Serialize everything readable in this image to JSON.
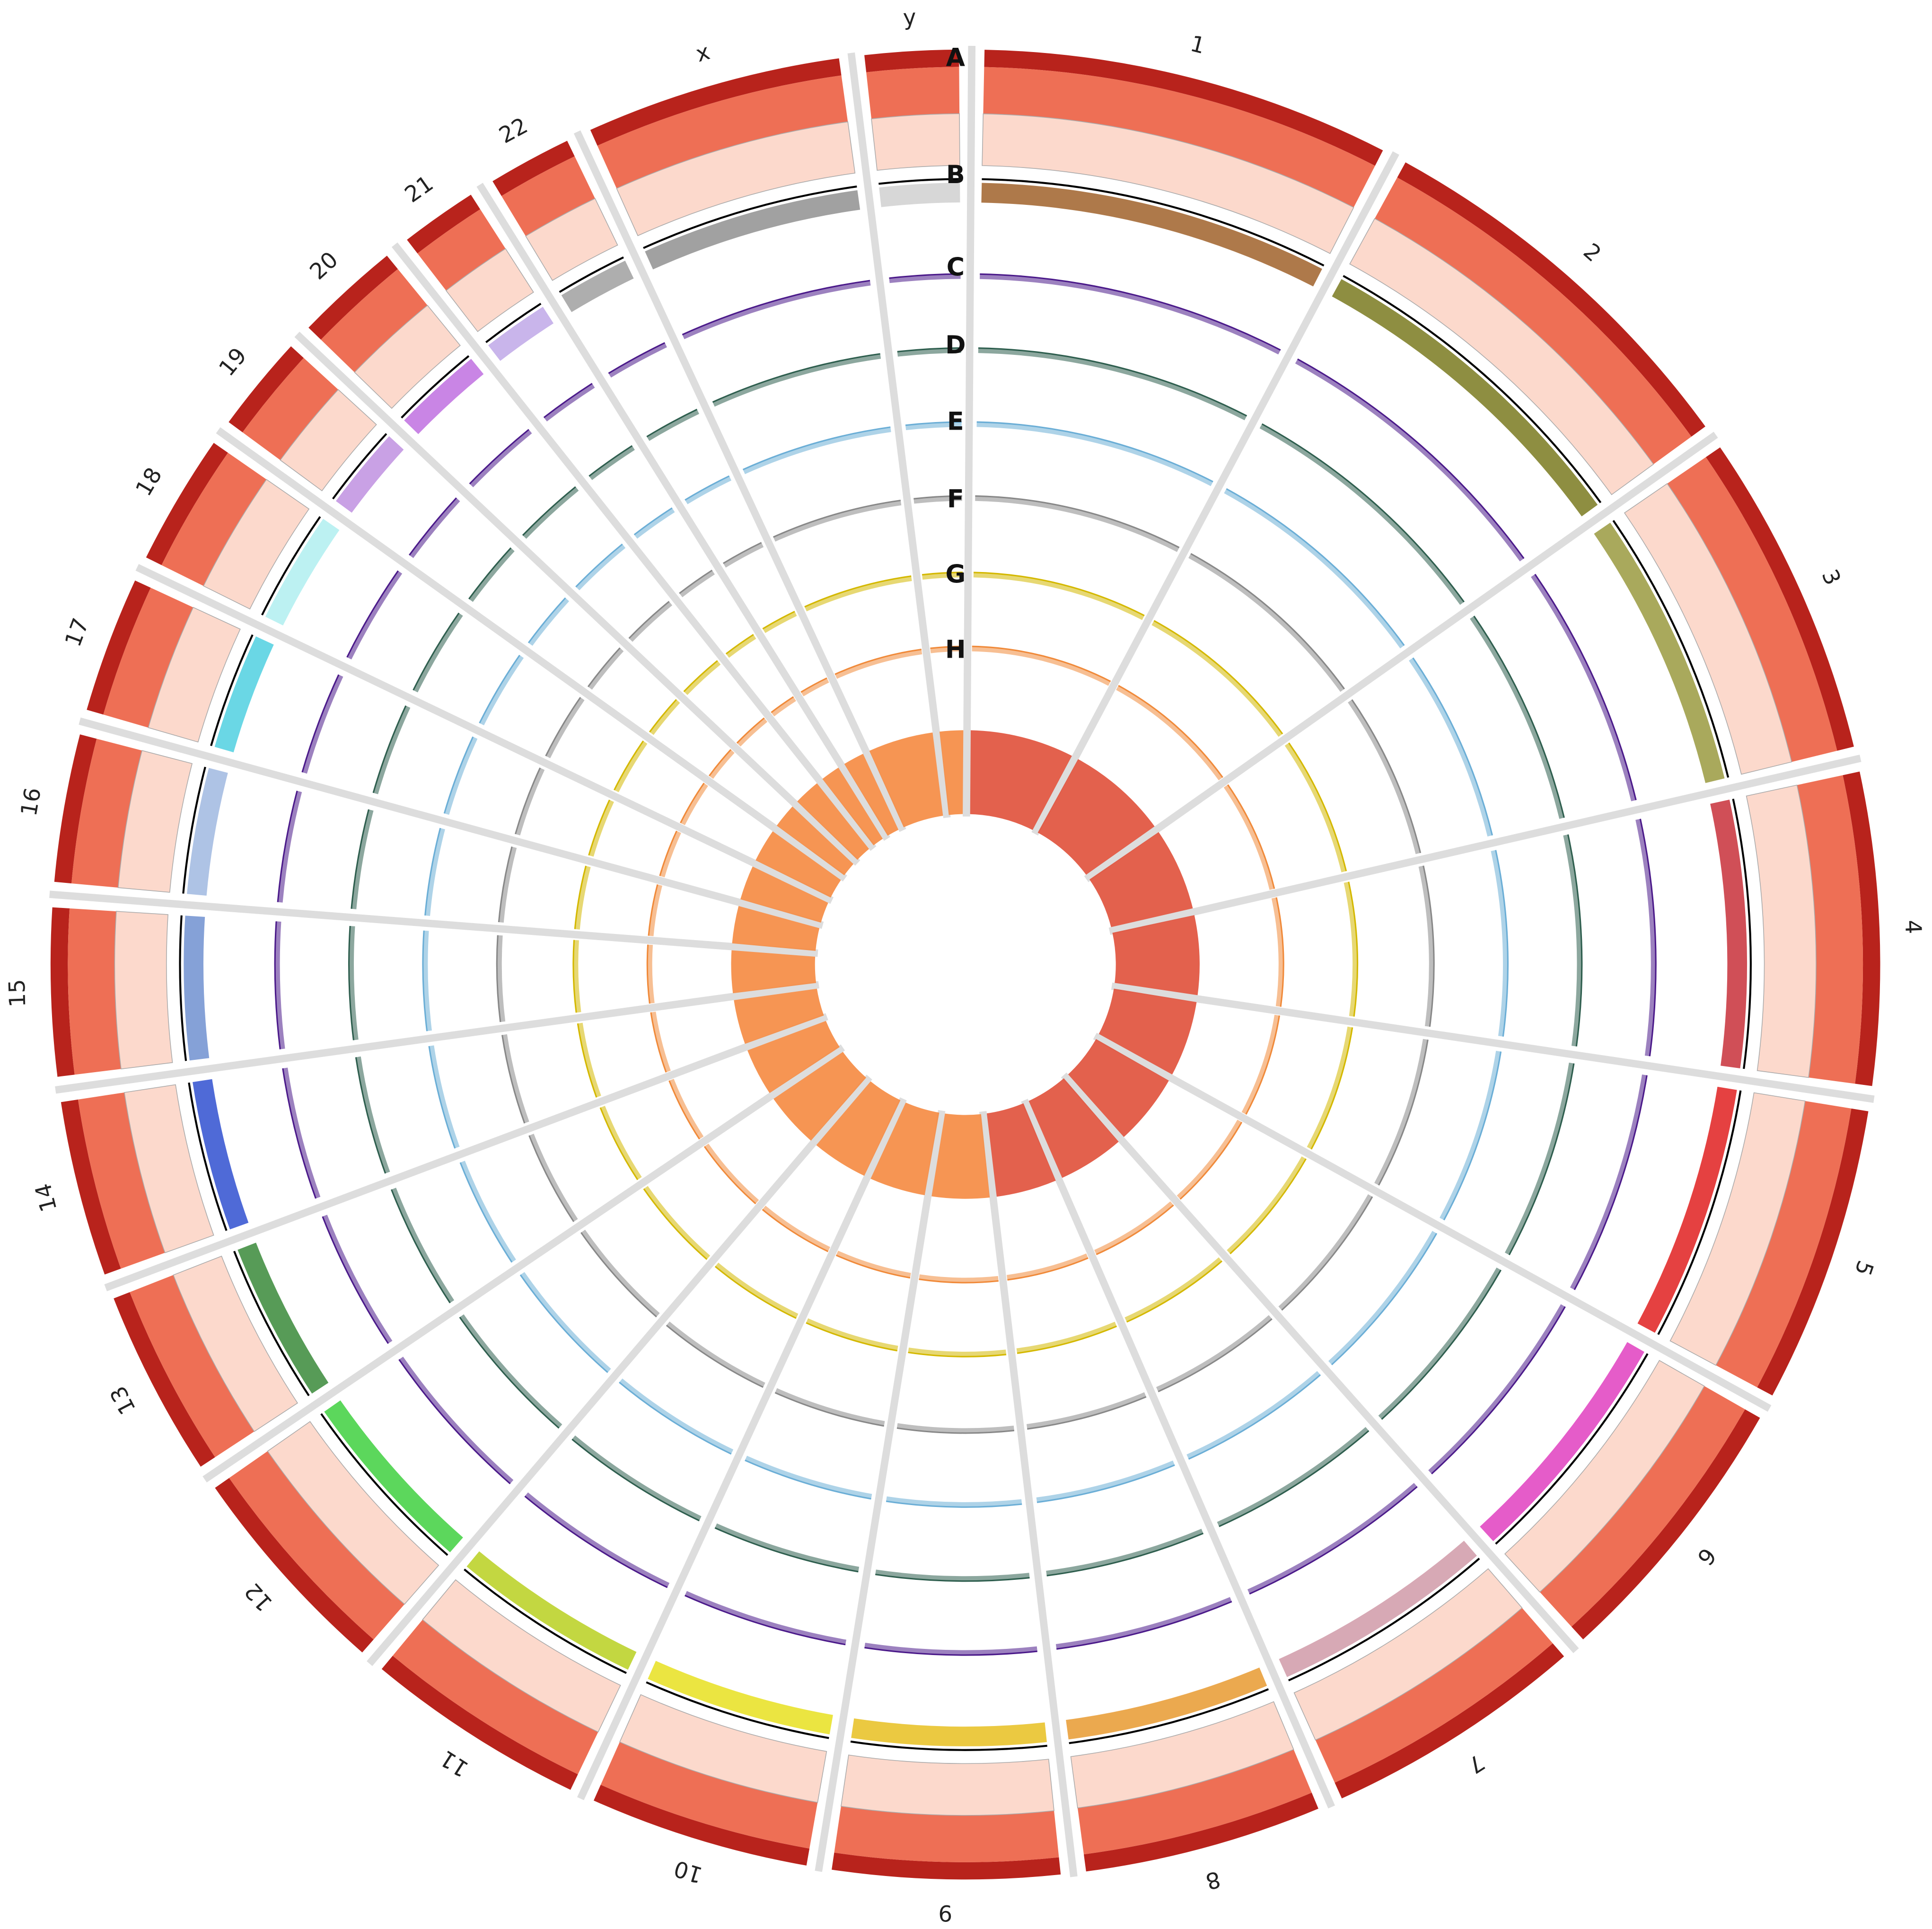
{
  "chromosomes": [
    "1",
    "2",
    "3",
    "4",
    "5",
    "6",
    "7",
    "8",
    "9",
    "10",
    "11",
    "12",
    "13",
    "14",
    "15",
    "16",
    "17",
    "18",
    "19",
    "20",
    "21",
    "22",
    "x",
    "y"
  ],
  "tracks": [
    "A",
    "B",
    "C",
    "D",
    "E",
    "F",
    "G",
    "H"
  ]
}
